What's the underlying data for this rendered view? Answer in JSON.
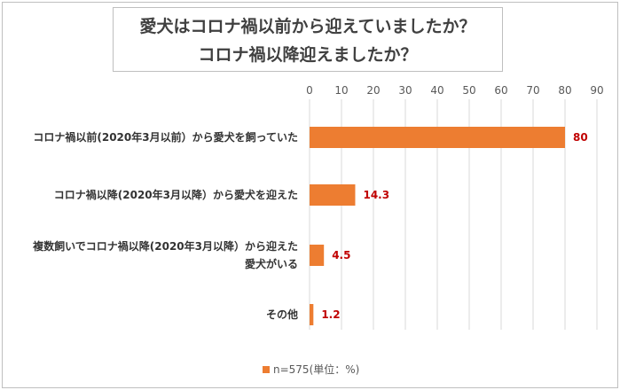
{
  "chart_data": {
    "type": "bar",
    "orientation": "horizontal",
    "title_lines": [
      "愛犬はコロナ禍以前から迎えていましたか？",
      "コロナ禍以降迎えましたか？"
    ],
    "categories": [
      [
        "コロナ禍以前(2020年3月以前）から愛犬を飼っていた"
      ],
      [
        "コロナ禍以降(2020年3月以降）から愛犬を迎えた"
      ],
      [
        "複数飼いでコロナ禍以降(2020年3月以降）から迎えた",
        "愛犬がいる"
      ],
      [
        "その他"
      ]
    ],
    "values": [
      80,
      14.3,
      4.5,
      1.2
    ],
    "value_labels": [
      "80",
      "14.3",
      "4.5",
      "1.2"
    ],
    "x_ticks": [
      0,
      10,
      20,
      30,
      40,
      50,
      60,
      70,
      80,
      90
    ],
    "xlim": [
      0,
      90
    ],
    "xaxis_position": "top",
    "grid": true,
    "bar_color": "#ed7d31",
    "label_color": "#c00000",
    "legend": {
      "label": "n=575(単位：%)",
      "position": "bottom"
    }
  }
}
